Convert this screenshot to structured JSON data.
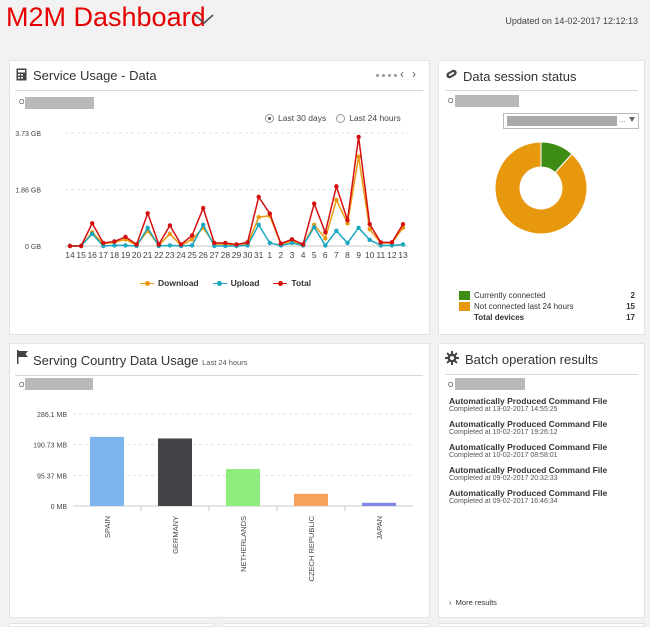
{
  "header": {
    "title": "M2M Dashboard",
    "updated": "Updated on 14-02-2017 12:12:13"
  },
  "service_usage": {
    "title": "Service Usage - Data",
    "op_prefix": "O",
    "range_options": [
      "Last 30 days",
      "Last 24 hours"
    ],
    "selected_range": "Last 30 days",
    "legend": [
      "Download",
      "Upload",
      "Total"
    ]
  },
  "data_session": {
    "title": "Data session status",
    "op_prefix": "O",
    "legend": [
      {
        "label": "Currently connected",
        "count": "2",
        "color": "#3d8c14"
      },
      {
        "label": "Not connected last 24 hours",
        "count": "15",
        "color": "#e8980d"
      }
    ],
    "total_label": "Total devices",
    "total_count": "17"
  },
  "serving_country": {
    "title": "Serving Country Data Usage",
    "subtitle": "Last 24 hours",
    "op_prefix": "O"
  },
  "batch": {
    "title": "Batch operation results",
    "op_prefix": "O",
    "items": [
      {
        "name": "Automatically Produced Command File",
        "date": "Completed at 13-02-2017 14:55:25"
      },
      {
        "name": "Automatically Produced Command File",
        "date": "Completed at 10-02-2017 19:26:12"
      },
      {
        "name": "Automatically Produced Command File",
        "date": "Completed at 10-02-2017 08:58:01"
      },
      {
        "name": "Automatically Produced Command File",
        "date": "Completed at 09-02-2017 20:32:33"
      },
      {
        "name": "Automatically Produced Command File",
        "date": "Completed at 09-02-2017 16:46:34"
      }
    ],
    "more": "More results"
  },
  "colors": {
    "accent": "#e60000",
    "download": "#e8980d",
    "upload": "#1aa7bf",
    "total": "#d40e0e"
  },
  "chart_data": [
    {
      "type": "line",
      "x": [
        "14",
        "15",
        "16",
        "17",
        "18",
        "19",
        "20",
        "21",
        "22",
        "23",
        "24",
        "25",
        "26",
        "27",
        "28",
        "29",
        "30",
        "31",
        "1",
        "2",
        "3",
        "4",
        "5",
        "6",
        "7",
        "8",
        "9",
        "10",
        "11",
        "12",
        "13"
      ],
      "y_ticks": [
        "3.73 GB",
        "1.86 GB",
        "0 GB"
      ],
      "ylim": [
        0,
        3.73
      ],
      "grid": true,
      "legend_position": "bottom",
      "series": [
        {
          "name": "Download",
          "color": "#e8980d",
          "values": [
            0.0,
            0.0,
            0.45,
            0.07,
            0.12,
            0.22,
            0.02,
            0.5,
            0.02,
            0.4,
            0.02,
            0.22,
            0.6,
            0.06,
            0.06,
            0.02,
            0.06,
            0.95,
            1.0,
            0.05,
            0.17,
            0.02,
            0.7,
            0.25,
            1.52,
            0.75,
            2.95,
            0.55,
            0.1,
            0.1,
            0.6
          ]
        },
        {
          "name": "Upload",
          "color": "#1aa7bf",
          "values": [
            0.0,
            0.0,
            0.4,
            0.0,
            0.02,
            0.02,
            0.0,
            0.6,
            0.0,
            0.02,
            0.0,
            0.02,
            0.7,
            0.0,
            0.0,
            0.0,
            0.02,
            0.7,
            0.1,
            0.02,
            0.1,
            0.02,
            0.62,
            0.02,
            0.5,
            0.1,
            0.6,
            0.2,
            0.02,
            0.02,
            0.05
          ]
        },
        {
          "name": "Total",
          "color": "#d40e0e",
          "values": [
            0.0,
            0.0,
            0.75,
            0.1,
            0.15,
            0.3,
            0.05,
            1.08,
            0.05,
            0.68,
            0.05,
            0.35,
            1.25,
            0.1,
            0.1,
            0.05,
            0.12,
            1.62,
            1.07,
            0.08,
            0.22,
            0.05,
            1.4,
            0.45,
            1.97,
            0.85,
            3.6,
            0.72,
            0.12,
            0.12,
            0.72
          ]
        }
      ]
    },
    {
      "type": "pie",
      "categories": [
        "Currently connected",
        "Not connected last 24 hours"
      ],
      "values": [
        2,
        15
      ],
      "colors": [
        "#3d8c14",
        "#e8980d"
      ],
      "legend_position": "bottom"
    },
    {
      "type": "bar",
      "categories": [
        "SPAIN",
        "GERMANY",
        "NETHERLANDS",
        "CZECH REPUBLIC",
        "JAPAN"
      ],
      "values": [
        215,
        210,
        115,
        38,
        10
      ],
      "colors": [
        "#7cb5ec",
        "#434348",
        "#90ed7d",
        "#f7a35c",
        "#8085e9"
      ],
      "y_ticks": [
        "286.1 MB",
        "190.73 MB",
        "95.37 MB",
        "0 MB"
      ],
      "tick_values": [
        286.1,
        190.73,
        95.37,
        0
      ],
      "ylim": [
        0,
        286.1
      ],
      "grid": true
    }
  ]
}
